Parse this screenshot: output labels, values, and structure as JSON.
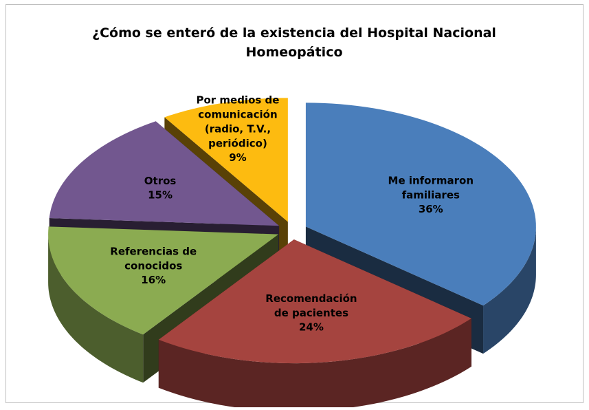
{
  "chart_data": {
    "type": "pie3d",
    "title": "¿Cómo se enteró de la existencia del Hospital Nacional Homeopático",
    "categories": [
      "Me informaron familiares",
      "Recomendación de pacientes",
      "Referencias de conocidos",
      "Otros",
      "Por medios de comunicación (radio, T.V., periódico)"
    ],
    "values": [
      36,
      24,
      16,
      15,
      9
    ],
    "value_labels": [
      "36%",
      "24%",
      "16%",
      "15%",
      "9%"
    ],
    "colors": [
      "#4a7ebb",
      "#a5443f",
      "#8bab51",
      "#72578f",
      "#fdbb10"
    ]
  }
}
